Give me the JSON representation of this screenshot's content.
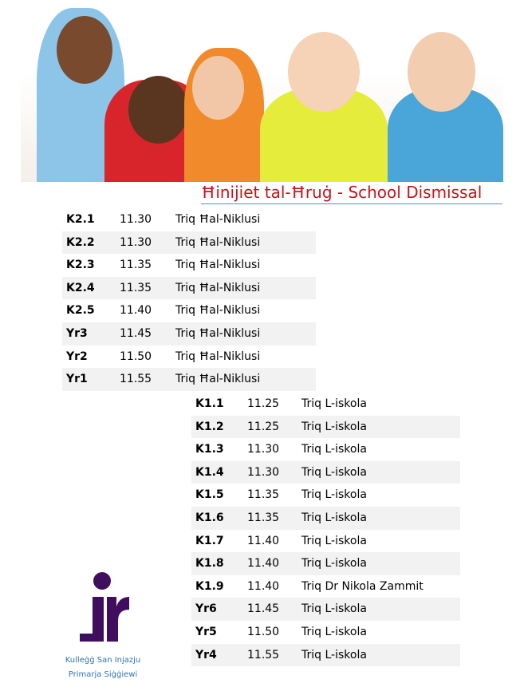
{
  "title": "Ħinijiet tal-Ħruġ - School Dismissal",
  "table1": [
    {
      "class": "K2.1",
      "time": "11.30",
      "street": "Triq Ħal-Niklusi"
    },
    {
      "class": "K2.2",
      "time": "11.30",
      "street": "Triq Ħal-Niklusi"
    },
    {
      "class": "K2.3",
      "time": "11.35",
      "street": "Triq Ħal-Niklusi"
    },
    {
      "class": "K2.4",
      "time": "11.35",
      "street": "Triq Ħal-Niklusi"
    },
    {
      "class": "K2.5",
      "time": "11.40",
      "street": "Triq Ħal-Niklusi"
    },
    {
      "class": "Yr3",
      "time": "11.45",
      "street": "Triq Ħal-Niklusi"
    },
    {
      "class": "Yr2",
      "time": "11.50",
      "street": "Triq Ħal-Niklusi"
    },
    {
      "class": "Yr1",
      "time": "11.55",
      "street": "Triq Ħal-Niklusi"
    }
  ],
  "table2": [
    {
      "class": "K1.1",
      "time": "11.25",
      "street": "Triq L-iskola"
    },
    {
      "class": "K1.2",
      "time": "11.25",
      "street": "Triq L-iskola"
    },
    {
      "class": "K1.3",
      "time": "11.30",
      "street": "Triq L-iskola"
    },
    {
      "class": "K1.4",
      "time": "11.30",
      "street": "Triq L-iskola"
    },
    {
      "class": "K1.5",
      "time": "11.35",
      "street": "Triq L-iskola"
    },
    {
      "class": "K1.6",
      "time": "11.35",
      "street": "Triq L-iskola"
    },
    {
      "class": "K1.7",
      "time": "11.40",
      "street": "Triq L-iskola"
    },
    {
      "class": "K1.8",
      "time": "11.40",
      "street": "Triq L-iskola"
    },
    {
      "class": "K1.9",
      "time": "11.40",
      "street": "Triq Dr Nikola Zammit"
    },
    {
      "class": "Yr6",
      "time": "11.45",
      "street": "Triq L-iskola"
    },
    {
      "class": "Yr5",
      "time": "11.50",
      "street": "Triq L-iskola"
    },
    {
      "class": "Yr4",
      "time": "11.55",
      "street": "Triq L-iskola"
    }
  ],
  "logo": {
    "line1": "Kulleġġ San Injazju",
    "line2": "Primarja Siġġiewi",
    "color": "#3f0e5e"
  },
  "colors": {
    "title": "#c8141c",
    "rule": "#5b8fc7",
    "stripe": "#f2f2f2"
  }
}
